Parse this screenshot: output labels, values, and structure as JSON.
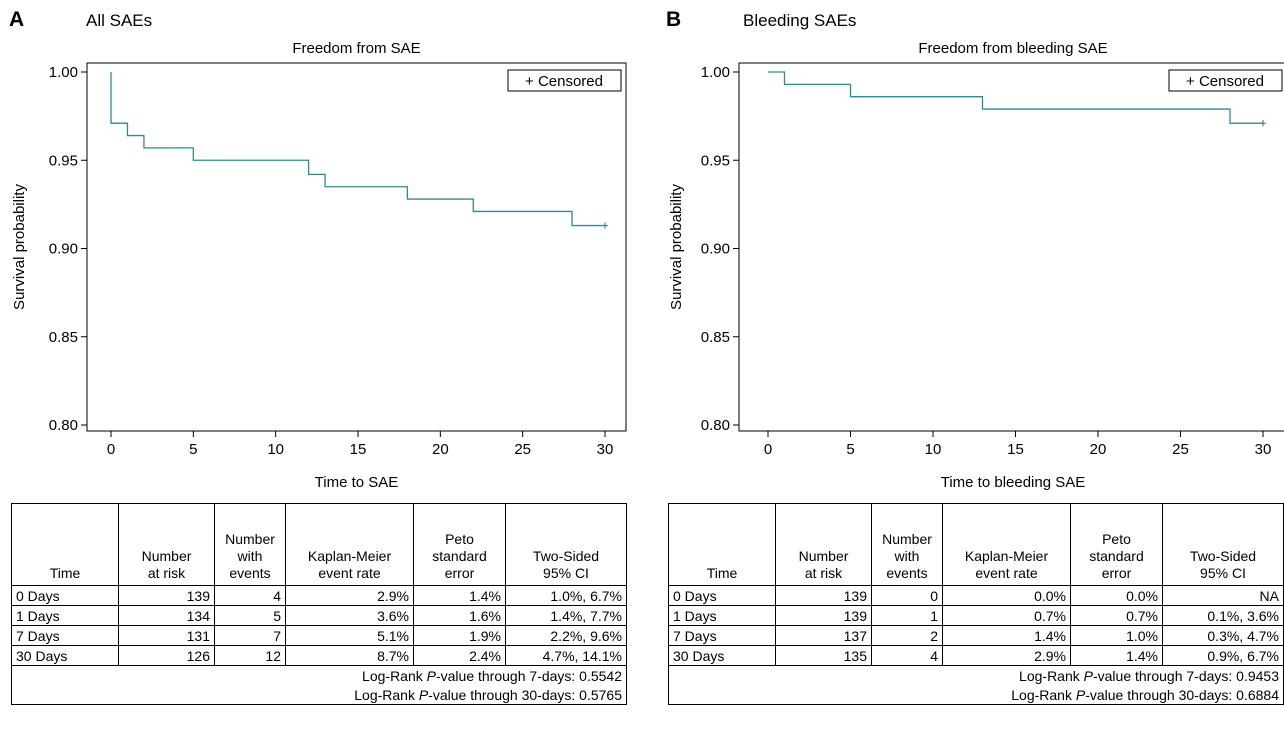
{
  "chart_data": [
    {
      "type": "line",
      "subtype": "kaplan-meier step",
      "panel_letter": "A",
      "heading": "All SAEs",
      "title": "Freedom from SAE",
      "xlabel": "Time to SAE",
      "ylabel": "Survival probability",
      "xlim": [
        0,
        30
      ],
      "ylim": [
        0.8,
        1.0
      ],
      "x_ticks": [
        0,
        5,
        10,
        15,
        20,
        25,
        30
      ],
      "y_ticks": [
        0.8,
        0.85,
        0.9,
        0.95,
        1.0
      ],
      "y_tick_labels": [
        "0.80",
        "0.85",
        "0.90",
        "0.95",
        "1.00"
      ],
      "legend": "+ Censored",
      "legend_position": "top-right",
      "line_color": "#2e8b8f",
      "series": [
        {
          "x": [
            0,
            1,
            2,
            5,
            12,
            13,
            18,
            22,
            28,
            30
          ],
          "y": [
            0.971,
            0.964,
            0.957,
            0.95,
            0.942,
            0.935,
            0.928,
            0.921,
            0.913,
            0.913
          ]
        }
      ],
      "censored": [
        {
          "x": 30,
          "y": 0.913
        }
      ]
    },
    {
      "type": "line",
      "subtype": "kaplan-meier step",
      "panel_letter": "B",
      "heading": "Bleeding SAEs",
      "title": "Freedom from bleeding SAE",
      "xlabel": "Time to bleeding SAE",
      "ylabel": "Survival probability",
      "xlim": [
        0,
        30
      ],
      "ylim": [
        0.8,
        1.0
      ],
      "x_ticks": [
        0,
        5,
        10,
        15,
        20,
        25,
        30
      ],
      "y_ticks": [
        0.8,
        0.85,
        0.9,
        0.95,
        1.0
      ],
      "y_tick_labels": [
        "0.80",
        "0.85",
        "0.90",
        "0.95",
        "1.00"
      ],
      "legend": "+ Censored",
      "legend_position": "top-right",
      "line_color": "#2e8b8f",
      "series": [
        {
          "x": [
            0,
            1,
            5,
            13,
            28,
            30
          ],
          "y": [
            1.0,
            0.993,
            0.986,
            0.979,
            0.971,
            0.971
          ]
        }
      ],
      "censored": [
        {
          "x": 30,
          "y": 0.971
        }
      ]
    }
  ],
  "tables": [
    {
      "headers": [
        "Time",
        "Number\nat risk",
        "Number\nwith\nevents",
        "Kaplan-Meier\nevent rate",
        "Peto\nstandard\nerror",
        "Two-Sided\n95% CI"
      ],
      "rows": [
        [
          "0 Days",
          "139",
          "4",
          "2.9%",
          "1.4%",
          "1.0%, 6.7%"
        ],
        [
          "1 Days",
          "134",
          "5",
          "3.6%",
          "1.6%",
          "1.4%, 7.7%"
        ],
        [
          "7 Days",
          "131",
          "7",
          "5.1%",
          "1.9%",
          "2.2%, 9.6%"
        ],
        [
          "30 Days",
          "126",
          "12",
          "8.7%",
          "2.4%",
          "4.7%, 14.1%"
        ]
      ],
      "logrank": [
        {
          "prefix": "Log-Rank ",
          "italic": "P",
          "suffix": "-value through 7-days: 0.5542"
        },
        {
          "prefix": "Log-Rank ",
          "italic": "P",
          "suffix": "-value through 30-days: 0.5765"
        }
      ]
    },
    {
      "headers": [
        "Time",
        "Number\nat risk",
        "Number\nwith\nevents",
        "Kaplan-Meier\nevent rate",
        "Peto\nstandard\nerror",
        "Two-Sided\n95% CI"
      ],
      "rows": [
        [
          "0 Days",
          "139",
          "0",
          "0.0%",
          "0.0%",
          "NA"
        ],
        [
          "1 Days",
          "139",
          "1",
          "0.7%",
          "0.7%",
          "0.1%, 3.6%"
        ],
        [
          "7 Days",
          "137",
          "2",
          "1.4%",
          "1.0%",
          "0.3%, 4.7%"
        ],
        [
          "30 Days",
          "135",
          "4",
          "2.9%",
          "1.4%",
          "0.9%, 6.7%"
        ]
      ],
      "logrank": [
        {
          "prefix": "Log-Rank ",
          "italic": "P",
          "suffix": "-value through 7-days: 0.9453"
        },
        {
          "prefix": "Log-Rank ",
          "italic": "P",
          "suffix": "-value through 30-days: 0.6884"
        }
      ]
    }
  ]
}
